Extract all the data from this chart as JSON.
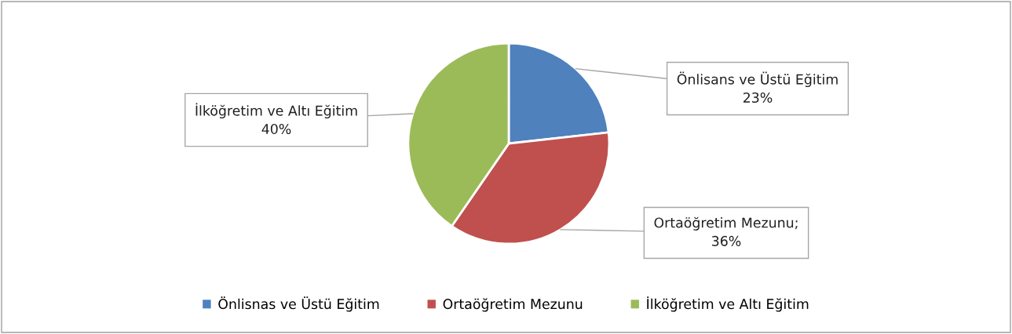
{
  "chart_data": {
    "type": "pie",
    "categories": [
      "Önlisnas ve Üstü Eğitim",
      "Ortaöğretim Mezunu",
      "İlköğretim ve Altı Eğitim"
    ],
    "values": [
      23,
      36,
      40
    ],
    "colors": [
      "#4f81bd",
      "#c0504d",
      "#9bbb59"
    ],
    "value_labels": [
      "Önlisans ve Üstü Eğitim\n23%",
      "Ortaöğretim Mezunu;\n36%",
      "İlköğretim ve Altı Eğitim\n40%"
    ],
    "legend": "bottom"
  }
}
